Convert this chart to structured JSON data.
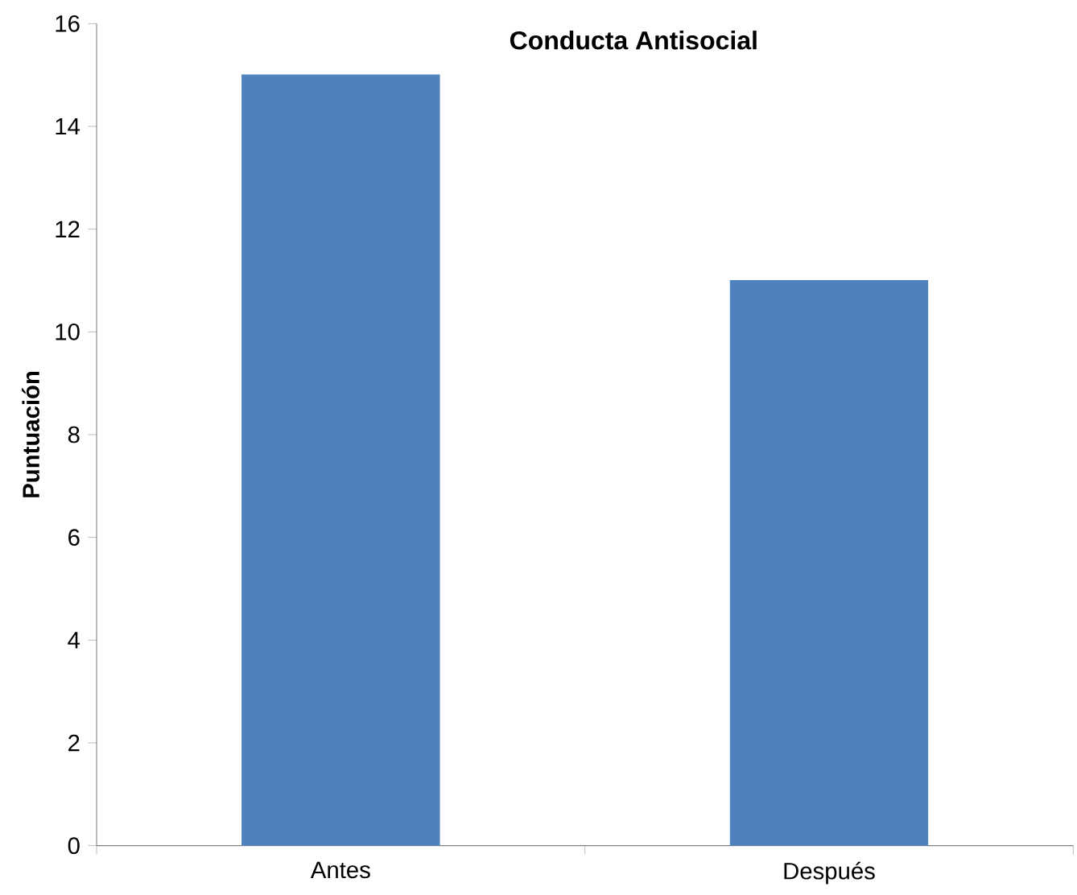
{
  "chart_data": {
    "type": "bar",
    "title": "Conducta Antisocial",
    "ylabel": "Puntuación",
    "categories": [
      "Antes",
      "Después"
    ],
    "values": [
      15,
      11
    ],
    "color": "#4f81bd",
    "ylim": [
      0,
      16
    ],
    "yticks": [
      0,
      2,
      4,
      6,
      8,
      10,
      12,
      14,
      16
    ],
    "grid": false
  }
}
